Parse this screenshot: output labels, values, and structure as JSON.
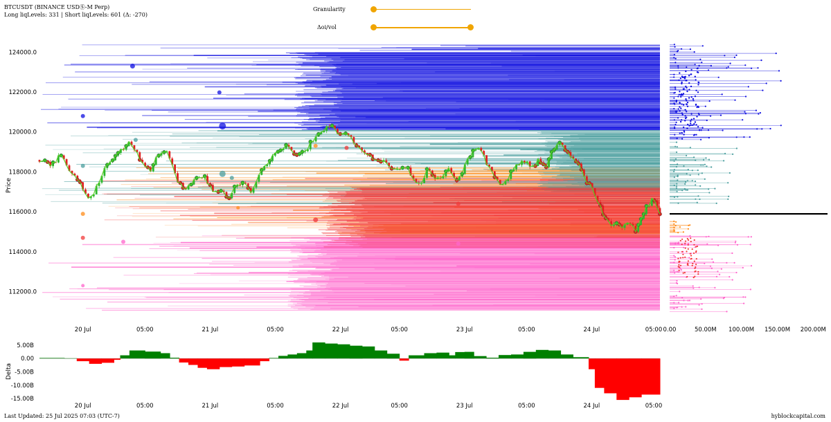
{
  "header": {
    "title": "BTCUSDT (BINANCE USDⓈ-M Perp)",
    "levels_text": "Long liqLevels: 331 | Short liqLevels: 601 (Δ: -270)"
  },
  "controls": {
    "granularity_label": "Granularity",
    "granularity_value": 0.0,
    "oi_vol_label": "Δoi/vol",
    "oi_vol_range": [
      0.0,
      1.0
    ]
  },
  "footer": {
    "last_updated": "Last Updated: 25 Jul 2025 07:03 (UTC-7)",
    "source": "hyblockcapital.com"
  },
  "colors": {
    "blue": "#1010e0",
    "teal": "#4a9e9e",
    "orange": "#ff8c1a",
    "red": "#f23a3a",
    "pink": "#ff66cc",
    "candle_up": "#2eb82e",
    "candle_down": "#e02020",
    "delta_pos": "#008000",
    "delta_neg": "#ff0000",
    "current_price_line": "#000000"
  },
  "chart_data": [
    {
      "type": "line",
      "name": "price_and_liquidation_levels",
      "ylabel": "Price",
      "ylim": [
        110600,
        124600
      ],
      "yticks": [
        112000,
        114000,
        116000,
        118000,
        120000,
        122000,
        124000
      ],
      "ytick_labels": [
        "112000.0",
        "114000.0",
        "116000.0",
        "118000.0",
        "120000.0",
        "122000.0",
        "124000.0"
      ],
      "xlim": [
        0,
        100
      ],
      "x_ticks": [
        {
          "x": 7,
          "label": "20 Jul"
        },
        {
          "x": 17,
          "label": "05:00"
        },
        {
          "x": 27.5,
          "label": "21 Jul"
        },
        {
          "x": 38,
          "label": "05:00"
        },
        {
          "x": 48.5,
          "label": "22 Jul"
        },
        {
          "x": 58,
          "label": "05:00"
        },
        {
          "x": 68.5,
          "label": "23 Jul"
        },
        {
          "x": 78.5,
          "label": "05:00"
        },
        {
          "x": 89,
          "label": "24 Jul"
        },
        {
          "x": 99,
          "label": "05:00"
        }
      ],
      "price_path": [
        [
          0,
          118600
        ],
        [
          2,
          118300
        ],
        [
          3.5,
          118900
        ],
        [
          5,
          118000
        ],
        [
          6.5,
          117400
        ],
        [
          8,
          116600
        ],
        [
          9,
          117100
        ],
        [
          10.5,
          118200
        ],
        [
          12,
          118700
        ],
        [
          13.5,
          119200
        ],
        [
          14.5,
          119500
        ],
        [
          15.5,
          119100
        ],
        [
          16.5,
          118400
        ],
        [
          18,
          118100
        ],
        [
          19,
          118800
        ],
        [
          20.5,
          119000
        ],
        [
          21.5,
          118200
        ],
        [
          22.5,
          117400
        ],
        [
          23.5,
          117100
        ],
        [
          25,
          117600
        ],
        [
          26.5,
          117800
        ],
        [
          28,
          117000
        ],
        [
          29.5,
          117100
        ],
        [
          30.5,
          116700
        ],
        [
          31.5,
          117200
        ],
        [
          33,
          117500
        ],
        [
          34,
          116900
        ],
        [
          35.5,
          117900
        ],
        [
          37,
          118500
        ],
        [
          38.5,
          119100
        ],
        [
          40,
          119400
        ],
        [
          41.5,
          118800
        ],
        [
          43,
          119100
        ],
        [
          44,
          119600
        ],
        [
          45.5,
          120100
        ],
        [
          47,
          120300
        ],
        [
          48,
          119900
        ],
        [
          49.5,
          120000
        ],
        [
          51,
          119400
        ],
        [
          52.5,
          118800
        ],
        [
          54,
          118700
        ],
        [
          56,
          118400
        ],
        [
          57.5,
          118100
        ],
        [
          59,
          118300
        ],
        [
          60,
          117800
        ],
        [
          61.5,
          117300
        ],
        [
          62.5,
          118300
        ],
        [
          63.5,
          117700
        ],
        [
          64.5,
          117600
        ],
        [
          66,
          118200
        ],
        [
          67,
          117600
        ],
        [
          68,
          117900
        ],
        [
          69,
          118600
        ],
        [
          70,
          119100
        ],
        [
          71,
          119300
        ],
        [
          71.8,
          118600
        ],
        [
          72.8,
          118000
        ],
        [
          73.8,
          117600
        ],
        [
          74.8,
          117300
        ],
        [
          75.8,
          117900
        ],
        [
          77,
          118400
        ],
        [
          78.5,
          118500
        ],
        [
          79.5,
          118200
        ],
        [
          80.5,
          118700
        ],
        [
          81.5,
          118200
        ],
        [
          82.5,
          119000
        ],
        [
          83.5,
          119400
        ],
        [
          84.5,
          119300
        ],
        [
          85.5,
          118700
        ],
        [
          87,
          118300
        ],
        [
          88,
          117600
        ],
        [
          89,
          117200
        ],
        [
          90,
          116500
        ],
        [
          91,
          115800
        ],
        [
          92,
          115300
        ],
        [
          93,
          115500
        ],
        [
          94,
          115200
        ],
        [
          95,
          115600
        ],
        [
          96,
          115000
        ],
        [
          97,
          115700
        ],
        [
          98,
          116300
        ],
        [
          99,
          116700
        ],
        [
          100,
          115800
        ]
      ],
      "current_price": 115900,
      "liquidation_zones": [
        {
          "name": "blue",
          "from": 120100,
          "to": 124400
        },
        {
          "name": "teal",
          "from": 116400,
          "to": 120100
        },
        {
          "name": "orange",
          "from": 115200,
          "to": 118300
        },
        {
          "name": "red",
          "from": 114600,
          "to": 117700
        },
        {
          "name": "pink",
          "from": 111000,
          "to": 114800
        }
      ]
    },
    {
      "type": "bar",
      "name": "liquidation_volume_profile",
      "orientation": "horizontal",
      "xlim": [
        0,
        220
      ],
      "x_ticks": [
        0,
        50,
        100,
        150,
        200
      ],
      "x_tick_labels": [
        "0.00",
        "50.00M",
        "100.00M",
        "150.00M",
        "200.00M"
      ]
    },
    {
      "type": "area",
      "name": "delta",
      "ylabel": "Delta",
      "ylim": [
        -16.5,
        7.3
      ],
      "yticks": [
        5,
        0,
        -5,
        -10,
        -15
      ],
      "ytick_labels": [
        "5.00B",
        "0.00",
        "-5.00B",
        "-10.00B",
        "-15.00B"
      ],
      "x_ticks": [
        {
          "x": 7,
          "label": "20 Jul"
        },
        {
          "x": 17,
          "label": "05:00"
        },
        {
          "x": 27.5,
          "label": "21 Jul"
        },
        {
          "x": 38,
          "label": "05:00"
        },
        {
          "x": 48.5,
          "label": "22 Jul"
        },
        {
          "x": 58,
          "label": "05:00"
        },
        {
          "x": 68.5,
          "label": "23 Jul"
        },
        {
          "x": 78.5,
          "label": "05:00"
        },
        {
          "x": 89,
          "label": "24 Jul"
        },
        {
          "x": 99,
          "label": "05:00"
        }
      ],
      "segments": [
        [
          0,
          0.2
        ],
        [
          4,
          0.1
        ],
        [
          6,
          -1.0
        ],
        [
          8,
          -2.0
        ],
        [
          10,
          -1.6
        ],
        [
          12,
          -0.5
        ],
        [
          13,
          1.2
        ],
        [
          14.5,
          3.0
        ],
        [
          17,
          2.6
        ],
        [
          19.5,
          2.0
        ],
        [
          21,
          0.3
        ],
        [
          22.5,
          -1.5
        ],
        [
          24,
          -2.4
        ],
        [
          25.5,
          -3.5
        ],
        [
          27,
          -4.0
        ],
        [
          29,
          -3.2
        ],
        [
          31,
          -3.0
        ],
        [
          33,
          -2.6
        ],
        [
          35.5,
          -1.0
        ],
        [
          37,
          0.2
        ],
        [
          38.5,
          1.0
        ],
        [
          40,
          1.5
        ],
        [
          41.5,
          2.0
        ],
        [
          43,
          3.0
        ],
        [
          44,
          6.0
        ],
        [
          46,
          5.6
        ],
        [
          48,
          5.3
        ],
        [
          50,
          4.8
        ],
        [
          52,
          4.5
        ],
        [
          54,
          3.0
        ],
        [
          56,
          1.8
        ],
        [
          58,
          -0.8
        ],
        [
          59.5,
          1.2
        ],
        [
          62,
          2.0
        ],
        [
          64,
          2.2
        ],
        [
          66,
          1.2
        ],
        [
          67,
          2.4
        ],
        [
          68.5,
          2.5
        ],
        [
          70,
          0.9
        ],
        [
          72,
          0.3
        ],
        [
          74,
          1.3
        ],
        [
          76,
          1.5
        ],
        [
          78,
          2.5
        ],
        [
          80,
          3.2
        ],
        [
          82,
          3.0
        ],
        [
          84,
          1.5
        ],
        [
          86,
          0.5
        ],
        [
          88.5,
          -4.0
        ],
        [
          89.5,
          -11.0
        ],
        [
          91,
          -13.0
        ],
        [
          93,
          -15.5
        ],
        [
          95,
          -14.5
        ],
        [
          97,
          -13.5
        ],
        [
          100,
          -14.0
        ]
      ]
    }
  ]
}
